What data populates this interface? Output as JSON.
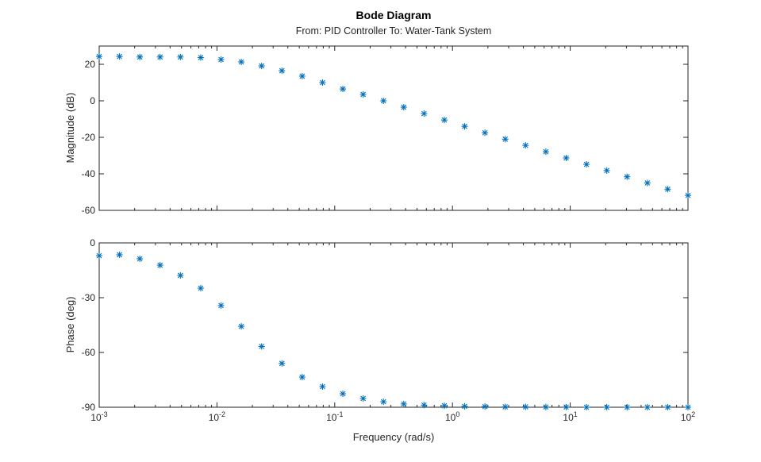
{
  "chart_data": {
    "type": "scatter",
    "title": "Bode Diagram",
    "subtitle": "From: PID Controller  To: Water-Tank System",
    "xlabel": "Frequency (rad/s)",
    "xscale": "log",
    "xlim": [
      0.001,
      100
    ],
    "x_ticks": [
      {
        "base": "10",
        "exp": "-3",
        "value": 0.001
      },
      {
        "base": "10",
        "exp": "-2",
        "value": 0.01
      },
      {
        "base": "10",
        "exp": "-1",
        "value": 0.1
      },
      {
        "base": "10",
        "exp": "0",
        "value": 1
      },
      {
        "base": "10",
        "exp": "1",
        "value": 10
      },
      {
        "base": "10",
        "exp": "2",
        "value": 100
      }
    ],
    "marker_color": "#0072BD",
    "marker": "*",
    "x": [
      0.001,
      0.001487,
      0.002212,
      0.00329,
      0.004894,
      0.007279,
      0.01083,
      0.0161,
      0.02395,
      0.03562,
      0.05298,
      0.0788,
      0.1172,
      0.1743,
      0.2593,
      0.3857,
      0.5736,
      0.8532,
      1.269,
      1.887,
      2.807,
      4.175,
      6.21,
      9.237,
      13.74,
      20.43,
      30.39,
      45.2,
      67.23,
      100
    ],
    "panels": [
      {
        "name": "magnitude",
        "ylabel": "Magnitude (dB)",
        "ylim": [
          -60,
          30
        ],
        "y_ticks": [
          20,
          0,
          -20,
          -40,
          -60
        ],
        "y_tick_labels": [
          "20",
          "0",
          "-20",
          "-40",
          "-60"
        ],
        "values": [
          24.3,
          24.3,
          24,
          24,
          24,
          23.7,
          22.6,
          21.3,
          19.1,
          16.5,
          13.5,
          10,
          6.5,
          3.5,
          0,
          -3.5,
          -7,
          -10.5,
          -14,
          -17.5,
          -21,
          -24.4,
          -27.9,
          -31.3,
          -34.8,
          -38.2,
          -41.6,
          -45,
          -48.4,
          -51.8
        ]
      },
      {
        "name": "phase",
        "ylabel": "Phase (deg)",
        "ylim": [
          -90,
          0
        ],
        "y_ticks": [
          0,
          -30,
          -60,
          -90
        ],
        "y_tick_labels": [
          "0",
          "-30",
          "-60",
          "-90"
        ],
        "values": [
          -7,
          -6.5,
          -8.7,
          -12.2,
          -17.8,
          -24.8,
          -34.3,
          -45.7,
          -56.7,
          -66,
          -73.5,
          -78.7,
          -82.6,
          -85.2,
          -87,
          -88.2,
          -88.8,
          -89.2,
          -89.5,
          -89.6,
          -89.8,
          -89.8,
          -89.9,
          -89.9,
          -90,
          -90,
          -90,
          -90,
          -90,
          -90
        ]
      }
    ]
  }
}
